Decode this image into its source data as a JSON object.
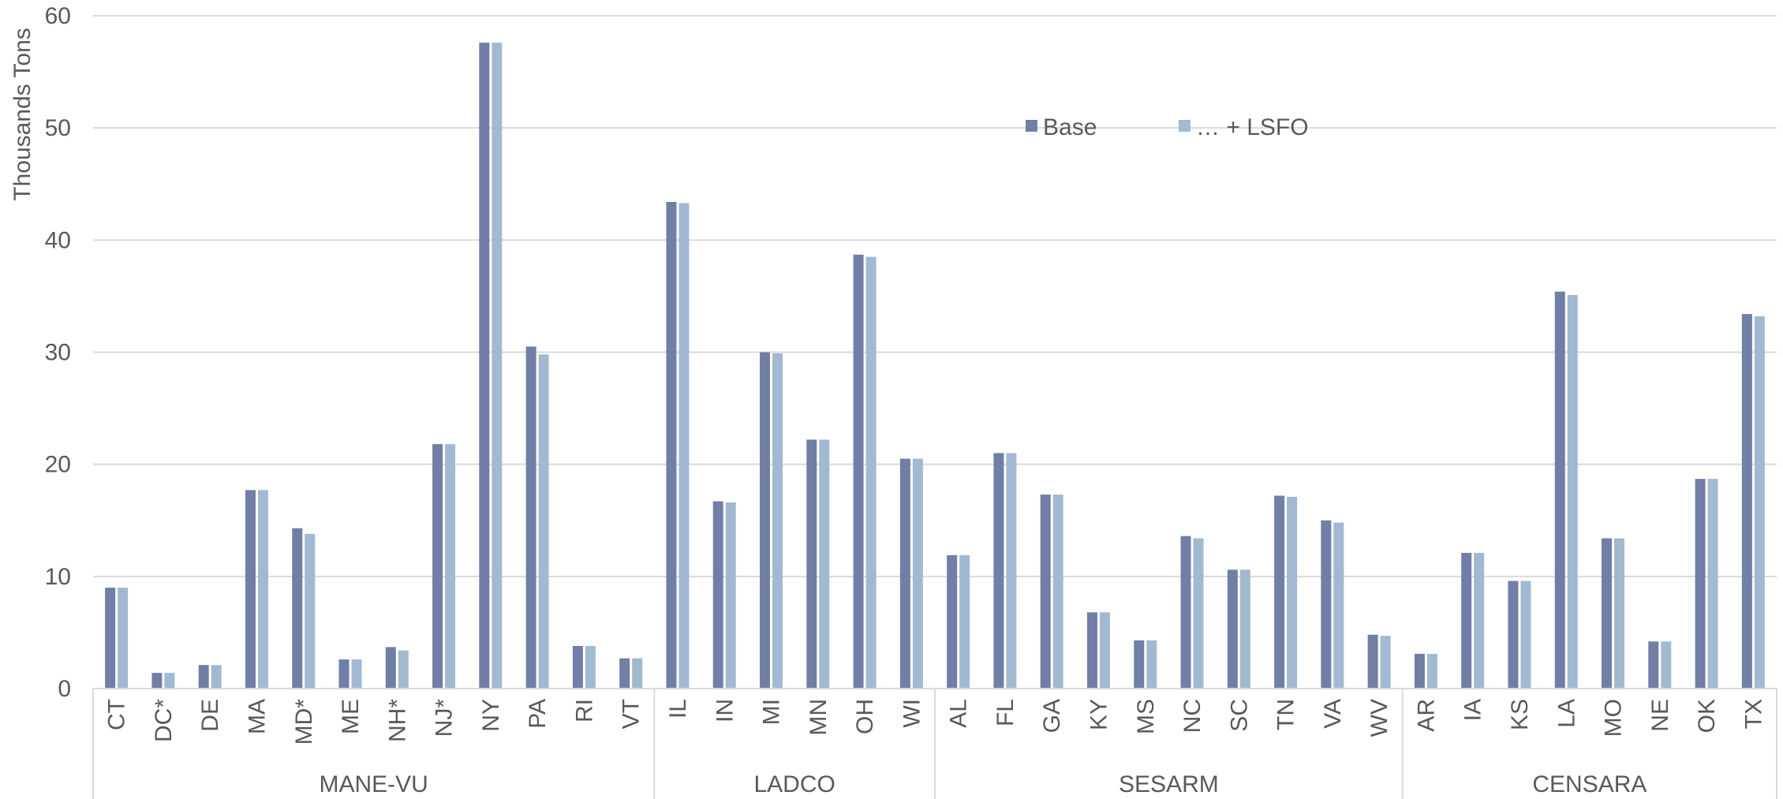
{
  "chart_data": {
    "type": "bar",
    "ylabel": "Thousands Tons",
    "xlabel": "",
    "ylim": [
      0,
      60
    ],
    "yticks": [
      "0",
      "10",
      "20",
      "30",
      "40",
      "50",
      "60"
    ],
    "grid": true,
    "legend_position": "top-center",
    "groups": [
      {
        "name": "MANE-VU",
        "count": 12
      },
      {
        "name": "LADCO",
        "count": 6
      },
      {
        "name": "SESARM",
        "count": 10
      },
      {
        "name": "CENSARA",
        "count": 8
      }
    ],
    "categories": [
      "CT",
      "DC*",
      "DE",
      "MA",
      "MD*",
      "ME",
      "NH*",
      "NJ*",
      "NY",
      "PA",
      "RI",
      "VT",
      "IL",
      "IN",
      "MI",
      "MN",
      "OH",
      "WI",
      "AL",
      "FL",
      "GA",
      "KY",
      "MS",
      "NC",
      "SC",
      "TN",
      "VA",
      "WV",
      "AR",
      "IA",
      "KS",
      "LA",
      "MO",
      "NE",
      "OK",
      "TX"
    ],
    "series": [
      {
        "name": "Base",
        "color": "#717fa6",
        "values": [
          9.0,
          1.4,
          2.1,
          17.7,
          14.3,
          2.6,
          3.7,
          21.8,
          57.6,
          30.5,
          3.8,
          2.7,
          43.4,
          16.7,
          30.0,
          22.2,
          38.7,
          20.5,
          11.9,
          21.0,
          17.3,
          6.8,
          4.3,
          13.6,
          10.6,
          17.2,
          15.0,
          4.8,
          3.1,
          12.1,
          9.6,
          35.4,
          13.4,
          4.2,
          18.7,
          33.4
        ]
      },
      {
        "name": "… + LSFO",
        "color": "#a2b9d2",
        "values": [
          9.0,
          1.4,
          2.1,
          17.7,
          13.8,
          2.6,
          3.4,
          21.8,
          57.6,
          29.8,
          3.8,
          2.7,
          43.3,
          16.6,
          29.9,
          22.2,
          38.5,
          20.5,
          11.9,
          21.0,
          17.3,
          6.8,
          4.3,
          13.4,
          10.6,
          17.1,
          14.8,
          4.7,
          3.1,
          12.1,
          9.6,
          35.1,
          13.4,
          4.2,
          18.7,
          33.2
        ]
      }
    ]
  }
}
